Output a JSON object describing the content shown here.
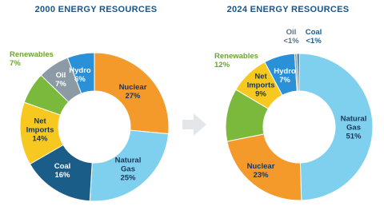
{
  "chart_data": [
    {
      "type": "donut",
      "title": "2000 ENERGY RESOURCES",
      "categories": [
        "Nuclear",
        "Natural Gas",
        "Coal",
        "Net Imports",
        "Renewables",
        "Oil",
        "Hydro"
      ],
      "values": [
        27,
        25,
        16,
        14,
        7,
        7,
        6
      ],
      "value_labels": [
        "27%",
        "25%",
        "16%",
        "14%",
        "7%",
        "7%",
        "6%"
      ],
      "colors": [
        "#f39a2b",
        "#7fd0ef",
        "#1b5d89",
        "#f7c81f",
        "#7bb93c",
        "#8b9aa5",
        "#2a90d8"
      ]
    },
    {
      "type": "donut",
      "title": "2024 ENERGY RESOURCES",
      "categories": [
        "Natural Gas",
        "Nuclear",
        "Renewables",
        "Net Imports",
        "Hydro",
        "Oil",
        "Coal"
      ],
      "values": [
        51,
        23,
        12,
        9,
        7,
        0.5,
        0.5
      ],
      "value_labels": [
        "51%",
        "23%",
        "12%",
        "9%",
        "7%",
        "<1%",
        "<1%"
      ],
      "colors": [
        "#7fd0ef",
        "#f39a2b",
        "#7bb93c",
        "#f7c81f",
        "#2a90d8",
        "#8b9aa5",
        "#1b5d89"
      ]
    }
  ]
}
